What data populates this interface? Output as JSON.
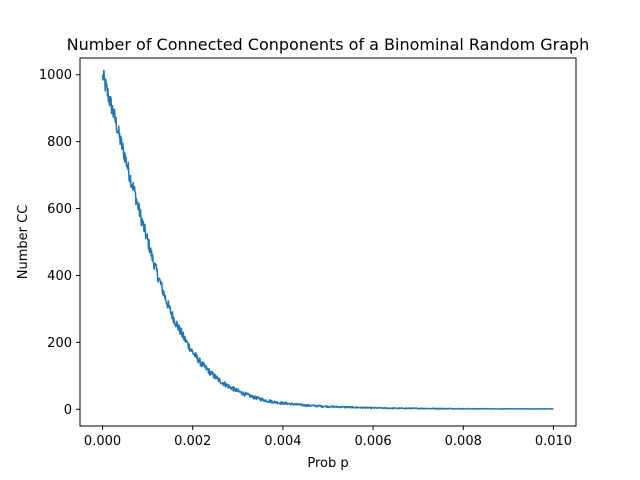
{
  "chart_data": {
    "type": "line",
    "title": "Number of Connected Conponents of a Binominal Random Graph",
    "xlabel": "Prob p",
    "ylabel": "Number CC",
    "xlim": [
      -0.0005,
      0.0105
    ],
    "ylim": [
      -50,
      1050
    ],
    "xticks": [
      0.0,
      0.002,
      0.004,
      0.006,
      0.008,
      0.01
    ],
    "xtick_labels": [
      "0.000",
      "0.002",
      "0.004",
      "0.006",
      "0.008",
      "0.010"
    ],
    "yticks": [
      0,
      200,
      400,
      600,
      800,
      1000
    ],
    "ytick_labels": [
      "0",
      "200",
      "400",
      "600",
      "800",
      "1000"
    ],
    "grid": false,
    "legend": "none",
    "line_color": "#1f77b4",
    "series": [
      {
        "x": [
          0.0,
          0.0001,
          0.0002,
          0.0003,
          0.0004,
          0.0005,
          0.0006,
          0.0007,
          0.0008,
          0.0009,
          0.001,
          0.0011,
          0.0012,
          0.0013,
          0.0014,
          0.0015,
          0.0016,
          0.0018,
          0.002,
          0.0022,
          0.0024,
          0.0026,
          0.0028,
          0.003,
          0.0032,
          0.0034,
          0.0036,
          0.0038,
          0.004,
          0.0045,
          0.005,
          0.0055,
          0.006,
          0.0065,
          0.007,
          0.0075,
          0.008,
          0.0085,
          0.009,
          0.0095,
          0.01
        ],
        "y": [
          1000,
          950,
          905,
          855,
          800,
          755,
          700,
          655,
          600,
          550,
          505,
          455,
          410,
          370,
          330,
          295,
          265,
          215,
          170,
          135,
          108,
          85,
          68,
          54,
          43,
          34,
          27,
          22,
          18,
          12,
          8,
          6,
          4,
          3,
          2.5,
          2,
          1.5,
          1.2,
          1,
          1,
          1
        ]
      }
    ]
  }
}
